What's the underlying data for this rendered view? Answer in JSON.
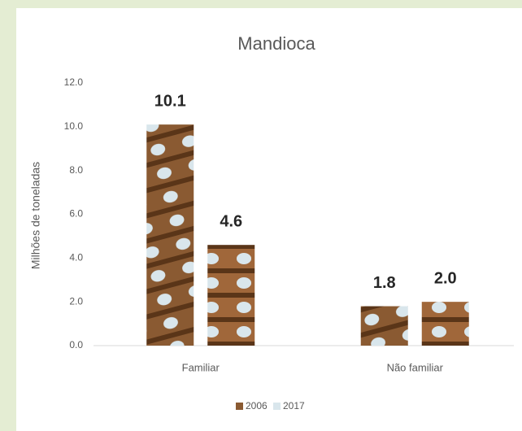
{
  "chart_data": {
    "type": "bar",
    "title": "Mandioca",
    "y_label": "Milhões de toneladas",
    "categories": [
      "Familiar",
      "Não familiar"
    ],
    "series": [
      {
        "name": "2006",
        "color": "#8a5a32",
        "values": [
          10.1,
          1.8
        ]
      },
      {
        "name": "2017",
        "color": "#a0673a",
        "values": [
          4.6,
          2.0
        ],
        "value_labels": [
          "4.6",
          "2.0"
        ]
      }
    ],
    "ylim": [
      0,
      12
    ],
    "yticks": [
      {
        "value": 0,
        "label": "0.0"
      },
      {
        "value": 2,
        "label": "2.0"
      },
      {
        "value": 4,
        "label": "4.0"
      },
      {
        "value": 6,
        "label": "6.0"
      },
      {
        "value": 8,
        "label": "8.0"
      },
      {
        "value": 10,
        "label": "10.0"
      },
      {
        "value": 12,
        "label": "12.0"
      }
    ],
    "legend": "bottom"
  }
}
